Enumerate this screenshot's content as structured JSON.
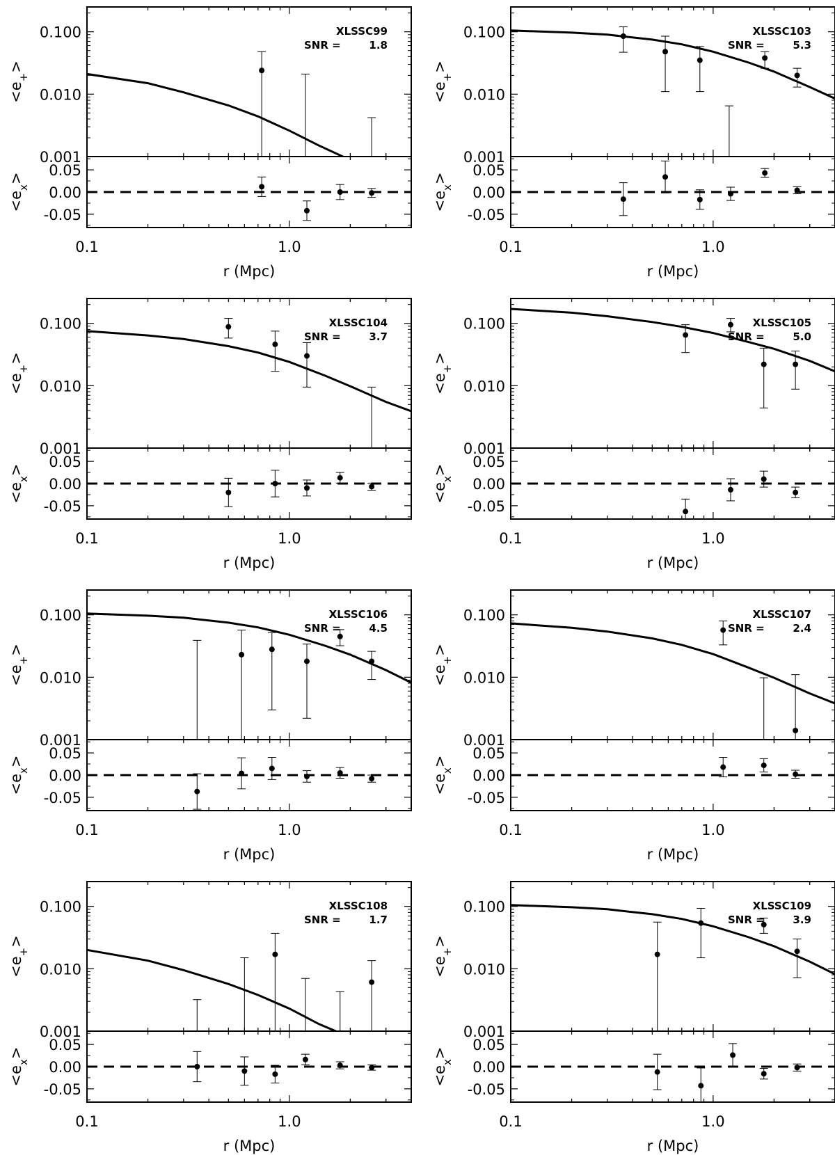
{
  "figure": {
    "panel_xlabel": "r (Mpc)",
    "top_ylabel_main": "<e",
    "top_ylabel_sub": "+",
    "top_ylabel_end": ">",
    "bottom_ylabel_main": "<e",
    "bottom_ylabel_sub": "x",
    "bottom_ylabel_end": ">",
    "snr_prefix": "SNR ="
  },
  "chart_data": [
    {
      "type": "scatter",
      "cluster": "XLSSC99",
      "snr": "1.8",
      "xlabel": "r (Mpc)",
      "xscale": "log",
      "xlim": [
        0.1,
        4.0
      ],
      "xticks": [
        "0.1",
        "1.0"
      ],
      "top": {
        "ylabel": "<e+>",
        "yscale": "log",
        "ylim": [
          0.001,
          0.25
        ],
        "yticks": [
          "0.001",
          "0.010",
          "0.100"
        ],
        "points": [
          {
            "x": 0.73,
            "y": 0.024,
            "ylow": 0.001,
            "yhigh": 0.048,
            "marker": true
          },
          {
            "x": 1.2,
            "y": null,
            "ylow": 0.001,
            "yhigh": 0.021,
            "marker": false
          },
          {
            "x": 2.55,
            "y": null,
            "ylow": 0.001,
            "yhigh": 0.0042,
            "marker": false
          }
        ],
        "model": {
          "style": "solid",
          "x": [
            0.1,
            0.2,
            0.3,
            0.5,
            0.7,
            1.0,
            1.4,
            1.9
          ],
          "y": [
            0.021,
            0.015,
            0.0107,
            0.0066,
            0.0044,
            0.0026,
            0.0015,
            0.00095
          ]
        }
      },
      "bottom": {
        "ylabel": "<ex>",
        "ylim": [
          -0.08,
          0.08
        ],
        "yticks": [
          "-0.05",
          "0.00",
          "0.05"
        ],
        "points": [
          {
            "x": 0.73,
            "y": 0.012,
            "err": 0.022
          },
          {
            "x": 1.22,
            "y": -0.042,
            "err": 0.022
          },
          {
            "x": 1.78,
            "y": 0.0,
            "err": 0.017
          },
          {
            "x": 2.55,
            "y": -0.002,
            "err": 0.01
          }
        ],
        "reference": {
          "y": 0.0,
          "style": "dashed"
        }
      }
    },
    {
      "type": "scatter",
      "cluster": "XLSSC103",
      "snr": "5.3",
      "xlabel": "r (Mpc)",
      "xscale": "log",
      "xlim": [
        0.1,
        4.0
      ],
      "xticks": [
        "0.1",
        "1.0"
      ],
      "top": {
        "ylabel": "<e+>",
        "yscale": "log",
        "ylim": [
          0.001,
          0.25
        ],
        "yticks": [
          "0.001",
          "0.010",
          "0.100"
        ],
        "points": [
          {
            "x": 0.36,
            "y": 0.085,
            "ylow": 0.047,
            "yhigh": 0.12,
            "marker": true
          },
          {
            "x": 0.58,
            "y": 0.048,
            "ylow": 0.011,
            "yhigh": 0.085,
            "marker": true
          },
          {
            "x": 0.86,
            "y": 0.035,
            "ylow": 0.011,
            "yhigh": 0.058,
            "marker": true
          },
          {
            "x": 1.2,
            "y": null,
            "ylow": 0.001,
            "yhigh": 0.0065,
            "marker": false
          },
          {
            "x": 1.8,
            "y": 0.038,
            "ylow": 0.026,
            "yhigh": 0.048,
            "marker": true
          },
          {
            "x": 2.6,
            "y": 0.02,
            "ylow": 0.013,
            "yhigh": 0.026,
            "marker": true
          }
        ],
        "model": {
          "style": "solid",
          "x": [
            0.1,
            0.2,
            0.3,
            0.5,
            0.7,
            1.0,
            1.5,
            2.0,
            3.0,
            4.0
          ],
          "y": [
            0.105,
            0.097,
            0.09,
            0.075,
            0.063,
            0.048,
            0.032,
            0.023,
            0.013,
            0.0085
          ]
        }
      },
      "bottom": {
        "ylabel": "<ex>",
        "ylim": [
          -0.08,
          0.08
        ],
        "yticks": [
          "-0.05",
          "0.00",
          "0.05"
        ],
        "points": [
          {
            "x": 0.36,
            "y": -0.016,
            "err": 0.037
          },
          {
            "x": 0.58,
            "y": 0.034,
            "err": 0.036
          },
          {
            "x": 0.86,
            "y": -0.017,
            "err": 0.022
          },
          {
            "x": 1.22,
            "y": -0.004,
            "err": 0.015
          },
          {
            "x": 1.8,
            "y": 0.043,
            "err": 0.01
          },
          {
            "x": 2.6,
            "y": 0.004,
            "err": 0.008
          }
        ],
        "reference": {
          "y": 0.0,
          "style": "dashed"
        }
      }
    },
    {
      "type": "scatter",
      "cluster": "XLSSC104",
      "snr": "3.7",
      "xlabel": "r (Mpc)",
      "xscale": "log",
      "xlim": [
        0.1,
        4.0
      ],
      "xticks": [
        "0.1",
        "1.0"
      ],
      "top": {
        "ylabel": "<e+>",
        "yscale": "log",
        "ylim": [
          0.001,
          0.25
        ],
        "yticks": [
          "0.001",
          "0.010",
          "0.100"
        ],
        "points": [
          {
            "x": 0.5,
            "y": 0.088,
            "ylow": 0.058,
            "yhigh": 0.12,
            "marker": true
          },
          {
            "x": 0.85,
            "y": 0.046,
            "ylow": 0.017,
            "yhigh": 0.075,
            "marker": true
          },
          {
            "x": 1.22,
            "y": 0.03,
            "ylow": 0.0095,
            "yhigh": 0.049,
            "marker": true
          },
          {
            "x": 2.55,
            "y": null,
            "ylow": 0.001,
            "yhigh": 0.0095,
            "marker": false
          }
        ],
        "model": {
          "style": "solid",
          "x": [
            0.1,
            0.2,
            0.3,
            0.5,
            0.7,
            1.0,
            1.5,
            2.0,
            3.0,
            4.0
          ],
          "y": [
            0.075,
            0.064,
            0.056,
            0.043,
            0.034,
            0.024,
            0.0145,
            0.0098,
            0.0055,
            0.0039
          ]
        }
      },
      "bottom": {
        "ylabel": "<ex>",
        "ylim": [
          -0.08,
          0.08
        ],
        "yticks": [
          "-0.05",
          "0.00",
          "0.05"
        ],
        "points": [
          {
            "x": 0.5,
            "y": -0.02,
            "err": 0.032
          },
          {
            "x": 0.85,
            "y": 0.0,
            "err": 0.03
          },
          {
            "x": 1.22,
            "y": -0.01,
            "err": 0.018
          },
          {
            "x": 1.78,
            "y": 0.013,
            "err": 0.012
          },
          {
            "x": 2.55,
            "y": -0.007,
            "err": 0.008
          }
        ],
        "reference": {
          "y": 0.0,
          "style": "dashed"
        }
      }
    },
    {
      "type": "scatter",
      "cluster": "XLSSC105",
      "snr": "5.0",
      "xlabel": "r (Mpc)",
      "xscale": "log",
      "xlim": [
        0.1,
        4.0
      ],
      "xticks": [
        "0.1",
        "1.0"
      ],
      "top": {
        "ylabel": "<e+>",
        "yscale": "log",
        "ylim": [
          0.001,
          0.25
        ],
        "yticks": [
          "0.001",
          "0.010",
          "0.100"
        ],
        "points": [
          {
            "x": 0.73,
            "y": 0.065,
            "ylow": 0.034,
            "yhigh": 0.095,
            "marker": true
          },
          {
            "x": 1.22,
            "y": 0.095,
            "ylow": 0.073,
            "yhigh": 0.12,
            "marker": true
          },
          {
            "x": 1.78,
            "y": 0.022,
            "ylow": 0.0044,
            "yhigh": 0.04,
            "marker": true
          },
          {
            "x": 2.55,
            "y": 0.022,
            "ylow": 0.0088,
            "yhigh": 0.036,
            "marker": true
          }
        ],
        "model": {
          "style": "solid",
          "x": [
            0.1,
            0.2,
            0.3,
            0.5,
            0.7,
            1.0,
            1.5,
            2.0,
            3.0,
            4.0
          ],
          "y": [
            0.17,
            0.148,
            0.13,
            0.105,
            0.088,
            0.07,
            0.05,
            0.039,
            0.025,
            0.017
          ]
        }
      },
      "bottom": {
        "ylabel": "<ex>",
        "ylim": [
          -0.08,
          0.08
        ],
        "yticks": [
          "-0.05",
          "0.00",
          "0.05"
        ],
        "points": [
          {
            "x": 0.73,
            "y": -0.063,
            "err": 0.028
          },
          {
            "x": 1.22,
            "y": -0.014,
            "err": 0.025
          },
          {
            "x": 1.78,
            "y": 0.01,
            "err": 0.018
          },
          {
            "x": 2.55,
            "y": -0.02,
            "err": 0.012
          }
        ],
        "reference": {
          "y": 0.0,
          "style": "dashed"
        }
      }
    },
    {
      "type": "scatter",
      "cluster": "XLSSC106",
      "snr": "4.5",
      "xlabel": "r (Mpc)",
      "xscale": "log",
      "xlim": [
        0.1,
        4.0
      ],
      "xticks": [
        "0.1",
        "1.0"
      ],
      "top": {
        "ylabel": "<e+>",
        "yscale": "log",
        "ylim": [
          0.001,
          0.25
        ],
        "yticks": [
          "0.001",
          "0.010",
          "0.100"
        ],
        "points": [
          {
            "x": 0.35,
            "y": null,
            "ylow": 0.001,
            "yhigh": 0.039,
            "marker": false
          },
          {
            "x": 0.58,
            "y": 0.023,
            "ylow": 0.001,
            "yhigh": 0.057,
            "marker": true
          },
          {
            "x": 0.82,
            "y": 0.028,
            "ylow": 0.003,
            "yhigh": 0.052,
            "marker": true
          },
          {
            "x": 1.22,
            "y": 0.018,
            "ylow": 0.0022,
            "yhigh": 0.034,
            "marker": true
          },
          {
            "x": 1.78,
            "y": 0.045,
            "ylow": 0.032,
            "yhigh": 0.058,
            "marker": true
          },
          {
            "x": 2.55,
            "y": 0.018,
            "ylow": 0.0092,
            "yhigh": 0.026,
            "marker": true
          }
        ],
        "model": {
          "style": "solid",
          "x": [
            0.1,
            0.2,
            0.3,
            0.5,
            0.7,
            1.0,
            1.5,
            2.0,
            3.0,
            4.0
          ],
          "y": [
            0.105,
            0.097,
            0.09,
            0.075,
            0.063,
            0.048,
            0.032,
            0.023,
            0.013,
            0.0082
          ]
        }
      },
      "bottom": {
        "ylabel": "<ex>",
        "ylim": [
          -0.08,
          0.08
        ],
        "yticks": [
          "-0.05",
          "0.00",
          "0.05"
        ],
        "points": [
          {
            "x": 0.35,
            "y": -0.037,
            "err": 0.04
          },
          {
            "x": 0.58,
            "y": 0.004,
            "err": 0.035
          },
          {
            "x": 0.82,
            "y": 0.015,
            "err": 0.025
          },
          {
            "x": 1.22,
            "y": -0.003,
            "err": 0.013
          },
          {
            "x": 1.78,
            "y": 0.005,
            "err": 0.012
          },
          {
            "x": 2.55,
            "y": -0.008,
            "err": 0.008
          }
        ],
        "reference": {
          "y": 0.0,
          "style": "dashed"
        }
      }
    },
    {
      "type": "scatter",
      "cluster": "XLSSC107",
      "snr": "2.4",
      "xlabel": "r (Mpc)",
      "xscale": "log",
      "xlim": [
        0.1,
        4.0
      ],
      "xticks": [
        "0.1",
        "1.0"
      ],
      "top": {
        "ylabel": "<e+>",
        "yscale": "log",
        "ylim": [
          0.001,
          0.25
        ],
        "yticks": [
          "0.001",
          "0.010",
          "0.100"
        ],
        "points": [
          {
            "x": 1.12,
            "y": 0.057,
            "ylow": 0.033,
            "yhigh": 0.08,
            "marker": true
          },
          {
            "x": 1.78,
            "y": null,
            "ylow": 0.001,
            "yhigh": 0.0098,
            "marker": false
          },
          {
            "x": 2.55,
            "y": 0.0014,
            "ylow": 0.001,
            "yhigh": 0.011,
            "marker": true
          }
        ],
        "model": {
          "style": "solid",
          "x": [
            0.1,
            0.2,
            0.3,
            0.5,
            0.7,
            1.0,
            1.5,
            2.0,
            3.0,
            4.0
          ],
          "y": [
            0.073,
            0.062,
            0.054,
            0.042,
            0.033,
            0.0235,
            0.0142,
            0.0098,
            0.0055,
            0.0038
          ]
        }
      },
      "bottom": {
        "ylabel": "<ex>",
        "ylim": [
          -0.08,
          0.08
        ],
        "yticks": [
          "-0.05",
          "0.00",
          "0.05"
        ],
        "points": [
          {
            "x": 1.12,
            "y": 0.018,
            "err": 0.022
          },
          {
            "x": 1.78,
            "y": 0.022,
            "err": 0.015
          },
          {
            "x": 2.55,
            "y": 0.002,
            "err": 0.009
          }
        ],
        "reference": {
          "y": 0.0,
          "style": "dashed"
        }
      }
    },
    {
      "type": "scatter",
      "cluster": "XLSSC108",
      "snr": "1.7",
      "xlabel": "r (Mpc)",
      "xscale": "log",
      "xlim": [
        0.1,
        4.0
      ],
      "xticks": [
        "0.1",
        "1.0"
      ],
      "top": {
        "ylabel": "<e+>",
        "yscale": "log",
        "ylim": [
          0.001,
          0.25
        ],
        "yticks": [
          "0.001",
          "0.010",
          "0.100"
        ],
        "points": [
          {
            "x": 0.35,
            "y": null,
            "ylow": 0.001,
            "yhigh": 0.0032,
            "marker": false
          },
          {
            "x": 0.6,
            "y": null,
            "ylow": 0.001,
            "yhigh": 0.015,
            "marker": false
          },
          {
            "x": 0.85,
            "y": 0.017,
            "ylow": 0.001,
            "yhigh": 0.037,
            "marker": true
          },
          {
            "x": 1.2,
            "y": null,
            "ylow": 0.001,
            "yhigh": 0.007,
            "marker": false
          },
          {
            "x": 1.78,
            "y": null,
            "ylow": 0.001,
            "yhigh": 0.0043,
            "marker": false
          },
          {
            "x": 2.55,
            "y": 0.0061,
            "ylow": 0.001,
            "yhigh": 0.0135,
            "marker": true
          }
        ],
        "model": {
          "style": "solid",
          "x": [
            0.1,
            0.2,
            0.3,
            0.5,
            0.7,
            1.0,
            1.4,
            1.8
          ],
          "y": [
            0.02,
            0.0135,
            0.0095,
            0.0057,
            0.0038,
            0.0023,
            0.0013,
            0.00092
          ]
        }
      },
      "bottom": {
        "ylabel": "<ex>",
        "ylim": [
          -0.08,
          0.08
        ],
        "yticks": [
          "-0.05",
          "0.00",
          "0.05"
        ],
        "points": [
          {
            "x": 0.35,
            "y": 0.0,
            "err": 0.034
          },
          {
            "x": 0.6,
            "y": -0.01,
            "err": 0.032
          },
          {
            "x": 0.85,
            "y": -0.017,
            "err": 0.02
          },
          {
            "x": 1.2,
            "y": 0.016,
            "err": 0.012
          },
          {
            "x": 1.78,
            "y": 0.003,
            "err": 0.008
          },
          {
            "x": 2.55,
            "y": -0.002,
            "err": 0.006
          }
        ],
        "reference": {
          "y": 0.0,
          "style": "dashed"
        }
      }
    },
    {
      "type": "scatter",
      "cluster": "XLSSC109",
      "snr": "3.9",
      "xlabel": "r (Mpc)",
      "xscale": "log",
      "xlim": [
        0.1,
        4.0
      ],
      "xticks": [
        "0.1",
        "1.0"
      ],
      "top": {
        "ylabel": "<e+>",
        "yscale": "log",
        "ylim": [
          0.001,
          0.25
        ],
        "yticks": [
          "0.001",
          "0.010",
          "0.100"
        ],
        "points": [
          {
            "x": 0.53,
            "y": 0.017,
            "ylow": 0.001,
            "yhigh": 0.056,
            "marker": true
          },
          {
            "x": 0.87,
            "y": 0.054,
            "ylow": 0.015,
            "yhigh": 0.093,
            "marker": true
          },
          {
            "x": 1.78,
            "y": 0.051,
            "ylow": 0.037,
            "yhigh": 0.065,
            "marker": true
          },
          {
            "x": 2.6,
            "y": 0.019,
            "ylow": 0.0072,
            "yhigh": 0.03,
            "marker": true
          }
        ],
        "model": {
          "style": "solid",
          "x": [
            0.1,
            0.2,
            0.3,
            0.5,
            0.7,
            1.0,
            1.5,
            2.0,
            3.0,
            4.0
          ],
          "y": [
            0.105,
            0.097,
            0.09,
            0.075,
            0.063,
            0.048,
            0.032,
            0.023,
            0.013,
            0.0082
          ]
        }
      },
      "bottom": {
        "ylabel": "<ex>",
        "ylim": [
          -0.08,
          0.08
        ],
        "yticks": [
          "-0.05",
          "0.00",
          "0.05"
        ],
        "points": [
          {
            "x": 0.53,
            "y": -0.012,
            "err": 0.04
          },
          {
            "x": 0.87,
            "y": -0.043,
            "err": 0.04
          },
          {
            "x": 1.25,
            "y": 0.026,
            "err": 0.026
          },
          {
            "x": 1.78,
            "y": -0.016,
            "err": 0.012
          },
          {
            "x": 2.6,
            "y": -0.002,
            "err": 0.008
          }
        ],
        "reference": {
          "y": 0.0,
          "style": "dashed"
        }
      }
    }
  ]
}
